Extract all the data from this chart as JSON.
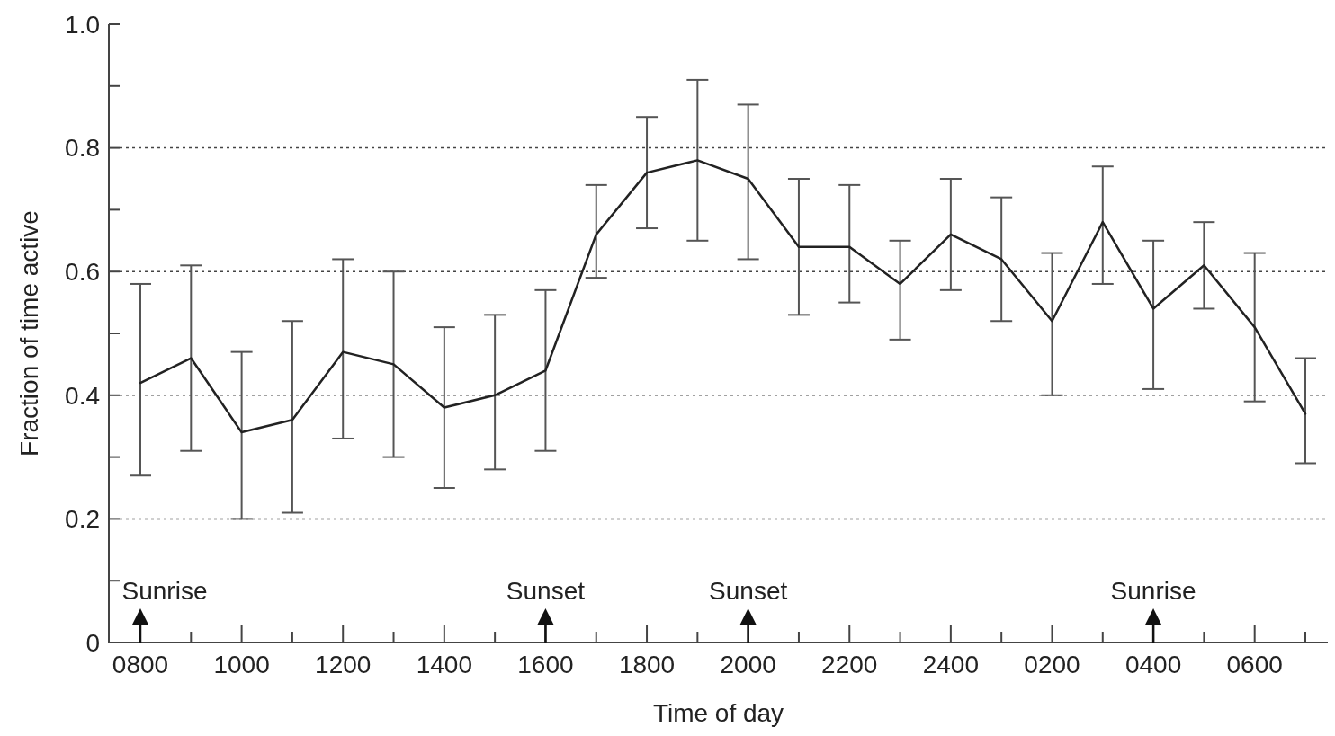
{
  "chart_data": {
    "type": "line",
    "xlabel": "Time of day",
    "ylabel": "Fraction of time active",
    "categories": [
      "0800",
      null,
      "1000",
      null,
      "1200",
      null,
      "1400",
      null,
      "1600",
      null,
      "1800",
      null,
      "2000",
      null,
      "2200",
      null,
      "2400",
      null,
      "0200",
      null,
      "0400",
      null,
      "0600",
      null
    ],
    "series": [
      {
        "color": "#222222",
        "values": [
          0.42,
          0.46,
          0.34,
          0.36,
          0.47,
          0.45,
          0.38,
          0.4,
          0.44,
          0.66,
          0.76,
          0.78,
          0.75,
          0.64,
          0.64,
          0.58,
          0.66,
          0.62,
          0.52,
          0.68,
          0.54,
          0.61,
          0.51,
          0.37
        ],
        "errors": [
          [
            0.27,
            0.58
          ],
          [
            0.31,
            0.61
          ],
          [
            0.2,
            0.47
          ],
          [
            0.21,
            0.52
          ],
          [
            0.33,
            0.62
          ],
          [
            0.3,
            0.6
          ],
          [
            0.25,
            0.51
          ],
          [
            0.28,
            0.53
          ],
          [
            0.31,
            0.57
          ],
          [
            0.59,
            0.74
          ],
          [
            0.67,
            0.85
          ],
          [
            0.65,
            0.91
          ],
          [
            0.62,
            0.87
          ],
          [
            0.53,
            0.75
          ],
          [
            0.55,
            0.74
          ],
          [
            0.49,
            0.65
          ],
          [
            0.57,
            0.75
          ],
          [
            0.52,
            0.72
          ],
          [
            0.4,
            0.63
          ],
          [
            0.58,
            0.77
          ],
          [
            0.41,
            0.65
          ],
          [
            0.54,
            0.68
          ],
          [
            0.39,
            0.63
          ],
          [
            0.29,
            0.46
          ]
        ]
      }
    ],
    "ylim": [
      0,
      1
    ],
    "yticks": [
      0,
      {
        "value": 0.1,
        "label": null
      },
      0.2,
      {
        "value": 0.3,
        "label": null
      },
      0.4,
      {
        "value": 0.5,
        "label": null
      },
      0.6,
      {
        "value": 0.7,
        "label": null
      },
      0.8,
      {
        "value": 0.9,
        "label": null
      },
      {
        "value": 1,
        "label": "1.0"
      }
    ],
    "grid": "y",
    "marker": "none",
    "line_style": "solid",
    "ref_lines": [
      {
        "axis": "x",
        "value": "0800",
        "label": "Sunrise"
      },
      {
        "axis": "x",
        "value": "1600",
        "label": "Sunset"
      },
      {
        "axis": "x",
        "value": "2000",
        "label": "Sunset"
      },
      {
        "axis": "x",
        "value": "0400",
        "label": "Sunrise"
      }
    ]
  }
}
